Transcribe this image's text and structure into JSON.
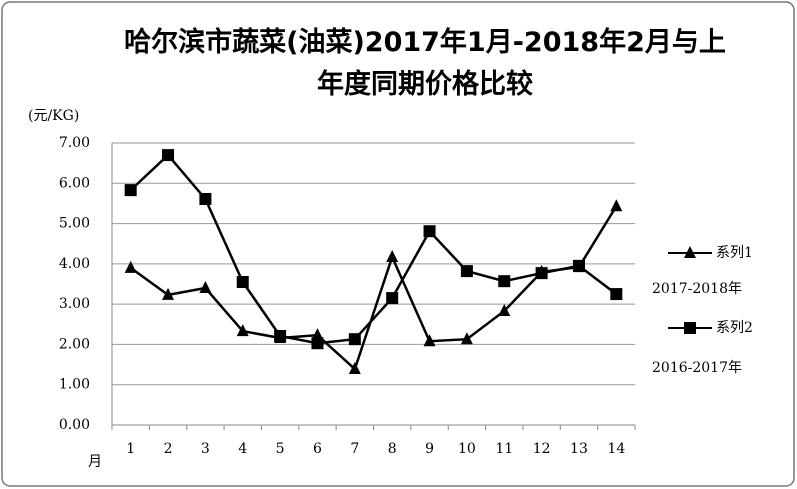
{
  "chart_data": {
    "type": "line",
    "title": "哈尔滨市蔬菜(油菜)2017年1月-2018年2月与上\n年度同期价格比较",
    "y_unit": "(元/KG)",
    "x_unit": "月",
    "categories": [
      "1",
      "2",
      "3",
      "4",
      "5",
      "6",
      "7",
      "8",
      "9",
      "10",
      "11",
      "12",
      "13",
      "14"
    ],
    "series": [
      {
        "name": "系列1",
        "note": "2017-2018年",
        "marker": "triangle",
        "color": "#000000",
        "values": [
          3.9,
          3.23,
          3.4,
          2.33,
          2.16,
          2.23,
          1.39,
          4.17,
          2.08,
          2.13,
          2.83,
          3.8,
          3.92,
          5.43
        ]
      },
      {
        "name": "系列2",
        "note": "2016-2017年",
        "marker": "square",
        "color": "#000000",
        "values": [
          5.83,
          6.7,
          5.61,
          3.55,
          2.21,
          2.03,
          2.13,
          3.15,
          4.81,
          3.82,
          3.57,
          3.77,
          3.95,
          3.25
        ]
      }
    ],
    "ylim": [
      0,
      7
    ],
    "yticks": [
      {
        "value": 0,
        "label": "0.00"
      },
      {
        "value": 1,
        "label": "1.00"
      },
      {
        "value": 2,
        "label": "2.00"
      },
      {
        "value": 3,
        "label": "3.00"
      },
      {
        "value": 4,
        "label": "4.00"
      },
      {
        "value": 5,
        "label": "5.00"
      },
      {
        "value": 6,
        "label": "6.00"
      },
      {
        "value": 7,
        "label": "7.00"
      }
    ],
    "grid": true,
    "legend": "right"
  }
}
